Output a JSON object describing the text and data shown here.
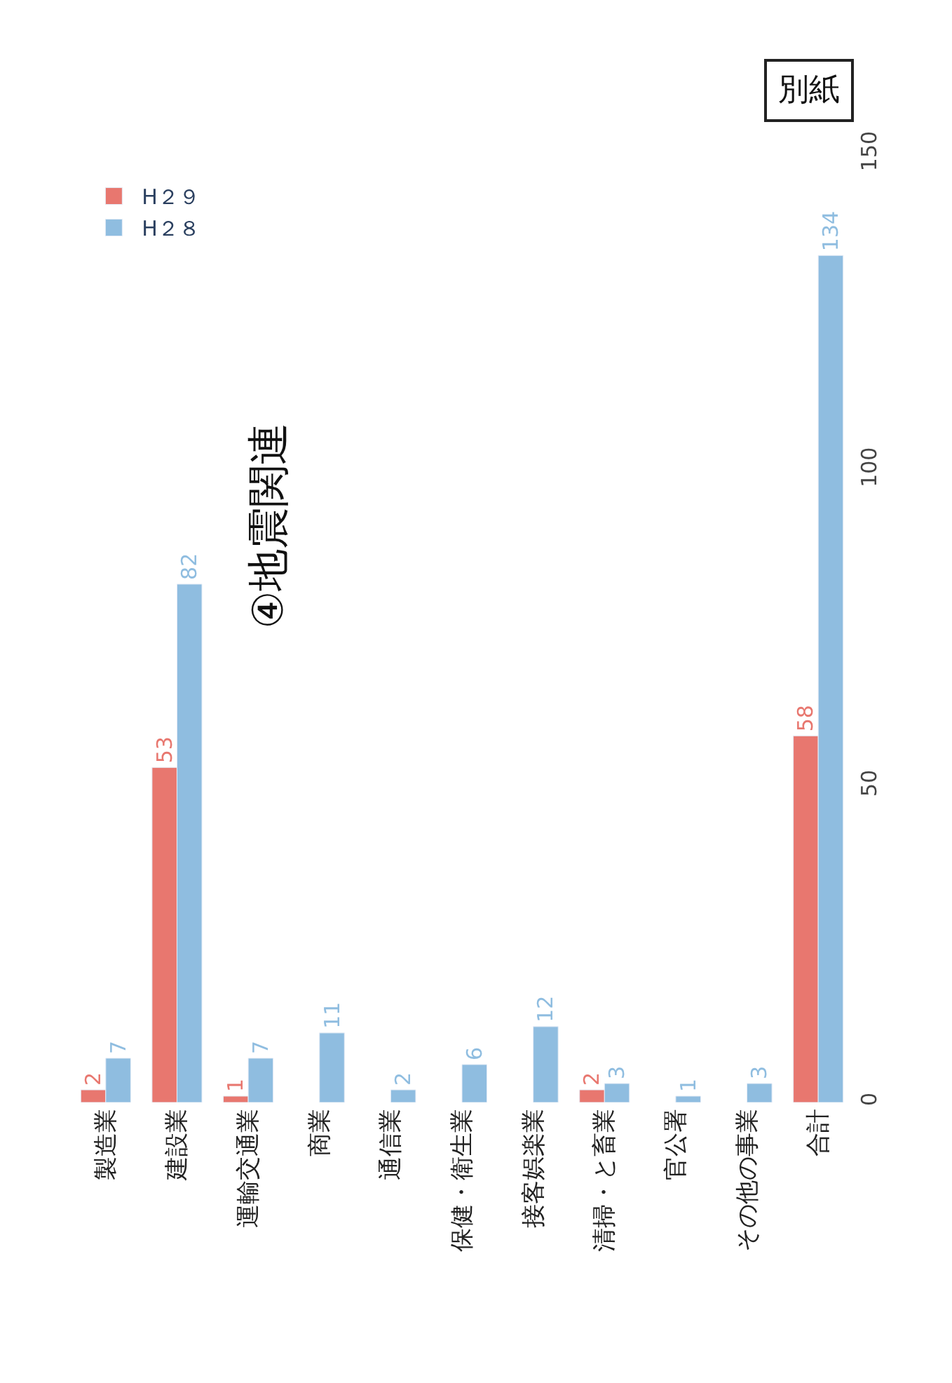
{
  "chart_data": {
    "type": "bar",
    "title": "④地震関連",
    "annotations": [
      "別紙"
    ],
    "categories": [
      "製造業",
      "建設業",
      "運輸交通業",
      "商業",
      "通信業",
      "保健・衛生業",
      "接客娯楽業",
      "清掃・と畜業",
      "官公署",
      "その他の事業",
      "合計"
    ],
    "series": [
      {
        "name": "H２９",
        "color": "#e8776f",
        "values": [
          2,
          53,
          1,
          null,
          null,
          null,
          null,
          2,
          null,
          null,
          58
        ],
        "value_labels": [
          "2",
          "53",
          "1",
          null,
          null,
          null,
          null,
          "2",
          null,
          null,
          "58"
        ]
      },
      {
        "name": "H２８",
        "color": "#8fbde0",
        "values": [
          7,
          82,
          7,
          11,
          2,
          6,
          12,
          3,
          1,
          3,
          134
        ],
        "value_labels": [
          "7",
          "82",
          "7",
          "11",
          "2",
          "6",
          "12",
          "3",
          "1",
          "3",
          "134"
        ]
      }
    ],
    "ylim": [
      0,
      150
    ],
    "yticks": [
      0,
      50,
      100,
      150
    ],
    "legend": "top left"
  }
}
